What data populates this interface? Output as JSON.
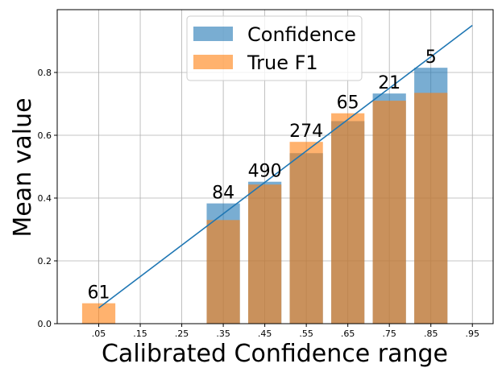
{
  "chart_data": {
    "type": "bar",
    "xlabel": "Calibrated Confidence range",
    "ylabel": "Mean value",
    "ylim": [
      0,
      1.0
    ],
    "xlim": [
      -0.05,
      1.0
    ],
    "x_ticks": [
      0.05,
      0.15,
      0.25,
      0.35,
      0.45,
      0.55,
      0.65,
      0.75,
      0.85,
      0.95
    ],
    "x_tick_labels": [
      ".05",
      ".15",
      ".25",
      ".35",
      ".45",
      ".55",
      ".65",
      ".75",
      ".85",
      ".95"
    ],
    "y_ticks": [
      0.0,
      0.2,
      0.4,
      0.6,
      0.8
    ],
    "y_tick_labels": [
      "0.0",
      "0.2",
      "0.4",
      "0.6",
      "0.8"
    ],
    "grid": true,
    "legend_position": "top-center",
    "categories": [
      ".05",
      ".35",
      ".45",
      ".55",
      ".65",
      ".75",
      ".85"
    ],
    "x": [
      0.05,
      0.35,
      0.45,
      0.55,
      0.65,
      0.75,
      0.85
    ],
    "counts": [
      "61",
      "84",
      "490",
      "274",
      "65",
      "21",
      "5"
    ],
    "series": [
      {
        "name": "Confidence",
        "color": "#1f77b4",
        "values": [
          0.0,
          0.383,
          0.452,
          0.543,
          0.645,
          0.733,
          0.815
        ]
      },
      {
        "name": "True F1",
        "color": "#ff7f0e",
        "values": [
          0.065,
          0.33,
          0.443,
          0.579,
          0.67,
          0.71,
          0.735
        ]
      }
    ],
    "reference_line": {
      "x": [
        0.05,
        0.95
      ],
      "y": [
        0.05,
        0.95
      ],
      "color": "#1f77b4"
    }
  }
}
